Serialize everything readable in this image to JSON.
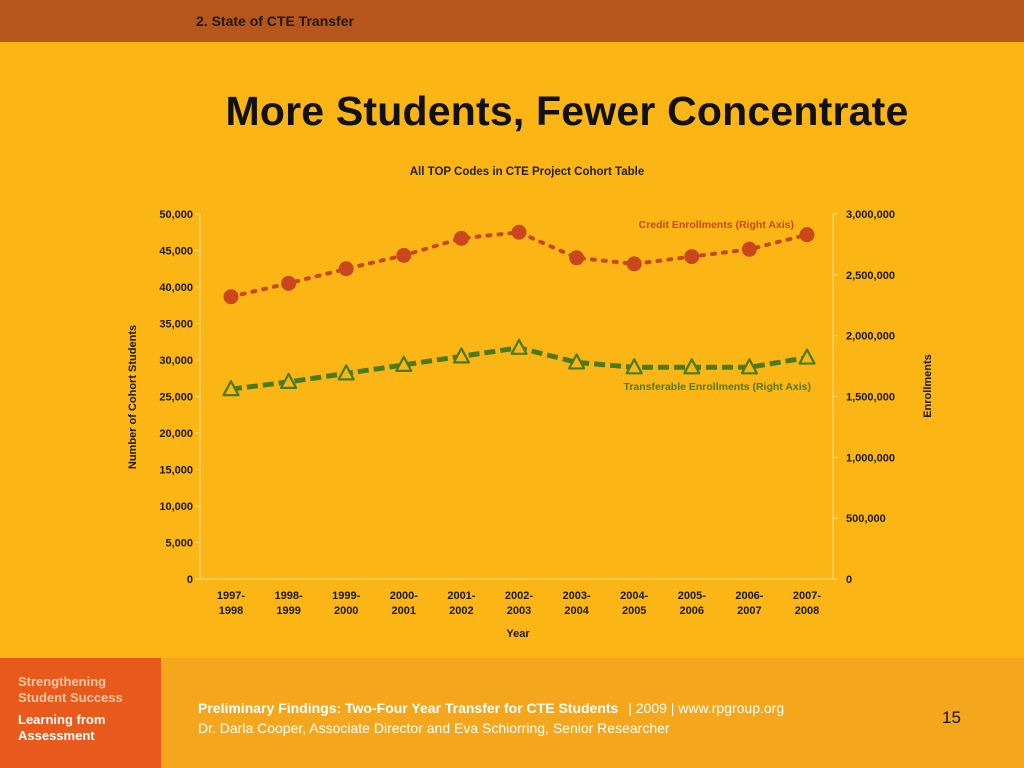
{
  "header": {
    "section": "2. State of CTE Transfer"
  },
  "slide": {
    "title": "More Students, Fewer Concentrate"
  },
  "chart_data": {
    "type": "line",
    "title": "All TOP Codes in CTE Project Cohort Table",
    "xlabel": "Year",
    "ylabel": "Number of Cohort Students",
    "y2label": "Enrollments",
    "categories": [
      "1997-1998",
      "1998-1999",
      "1999-2000",
      "2000-2001",
      "2001-2002",
      "2002-2003",
      "2003-2004",
      "2004-2005",
      "2005-2006",
      "2006-2007",
      "2007-2008"
    ],
    "category_lines": [
      [
        "1997-",
        "1998"
      ],
      [
        "1998-",
        "1999"
      ],
      [
        "1999-",
        "2000"
      ],
      [
        "2000-",
        "2001"
      ],
      [
        "2001-",
        "2002"
      ],
      [
        "2002-",
        "2003"
      ],
      [
        "2003-",
        "2004"
      ],
      [
        "2004-",
        "2005"
      ],
      [
        "2005-",
        "2006"
      ],
      [
        "2006-",
        "2007"
      ],
      [
        "2007-",
        "2008"
      ]
    ],
    "ylim": [
      0,
      50000
    ],
    "y2lim": [
      0,
      3000000
    ],
    "yticks": [
      "0",
      "5,000",
      "10,000",
      "15,000",
      "20,000",
      "25,000",
      "30,000",
      "35,000",
      "40,000",
      "45,000",
      "50,000"
    ],
    "y2ticks": [
      "0",
      "500,000",
      "1,000,000",
      "1,500,000",
      "2,000,000",
      "2,500,000",
      "3,000,000"
    ],
    "grid": false,
    "series": [
      {
        "name": "Credit Enrollments (Right Axis)",
        "axis": "right",
        "color": "#c9471b",
        "values": [
          2320000,
          2430000,
          2550000,
          2660000,
          2800000,
          2850000,
          2640000,
          2590000,
          2650000,
          2710000,
          2830000
        ]
      },
      {
        "name": "Transferable Enrollments (Right Axis)",
        "axis": "right",
        "color": "#4a7a1c",
        "values": [
          1560000,
          1620000,
          1690000,
          1760000,
          1830000,
          1900000,
          1780000,
          1740000,
          1740000,
          1740000,
          1820000
        ]
      }
    ]
  },
  "footer": {
    "logo_line1": "Strengthening",
    "logo_line2": "Student Success",
    "logo_line3": "Learning from",
    "logo_line4": "Assessment",
    "line1_bold": "Preliminary Findings: Two-Four Year Transfer for CTE Students",
    "line1_meta": "|  2009  |  www.rpgroup.org",
    "line2": "Dr. Darla Cooper, Associate Director and Eva Schiorring, Senior Researcher",
    "page": "15"
  }
}
